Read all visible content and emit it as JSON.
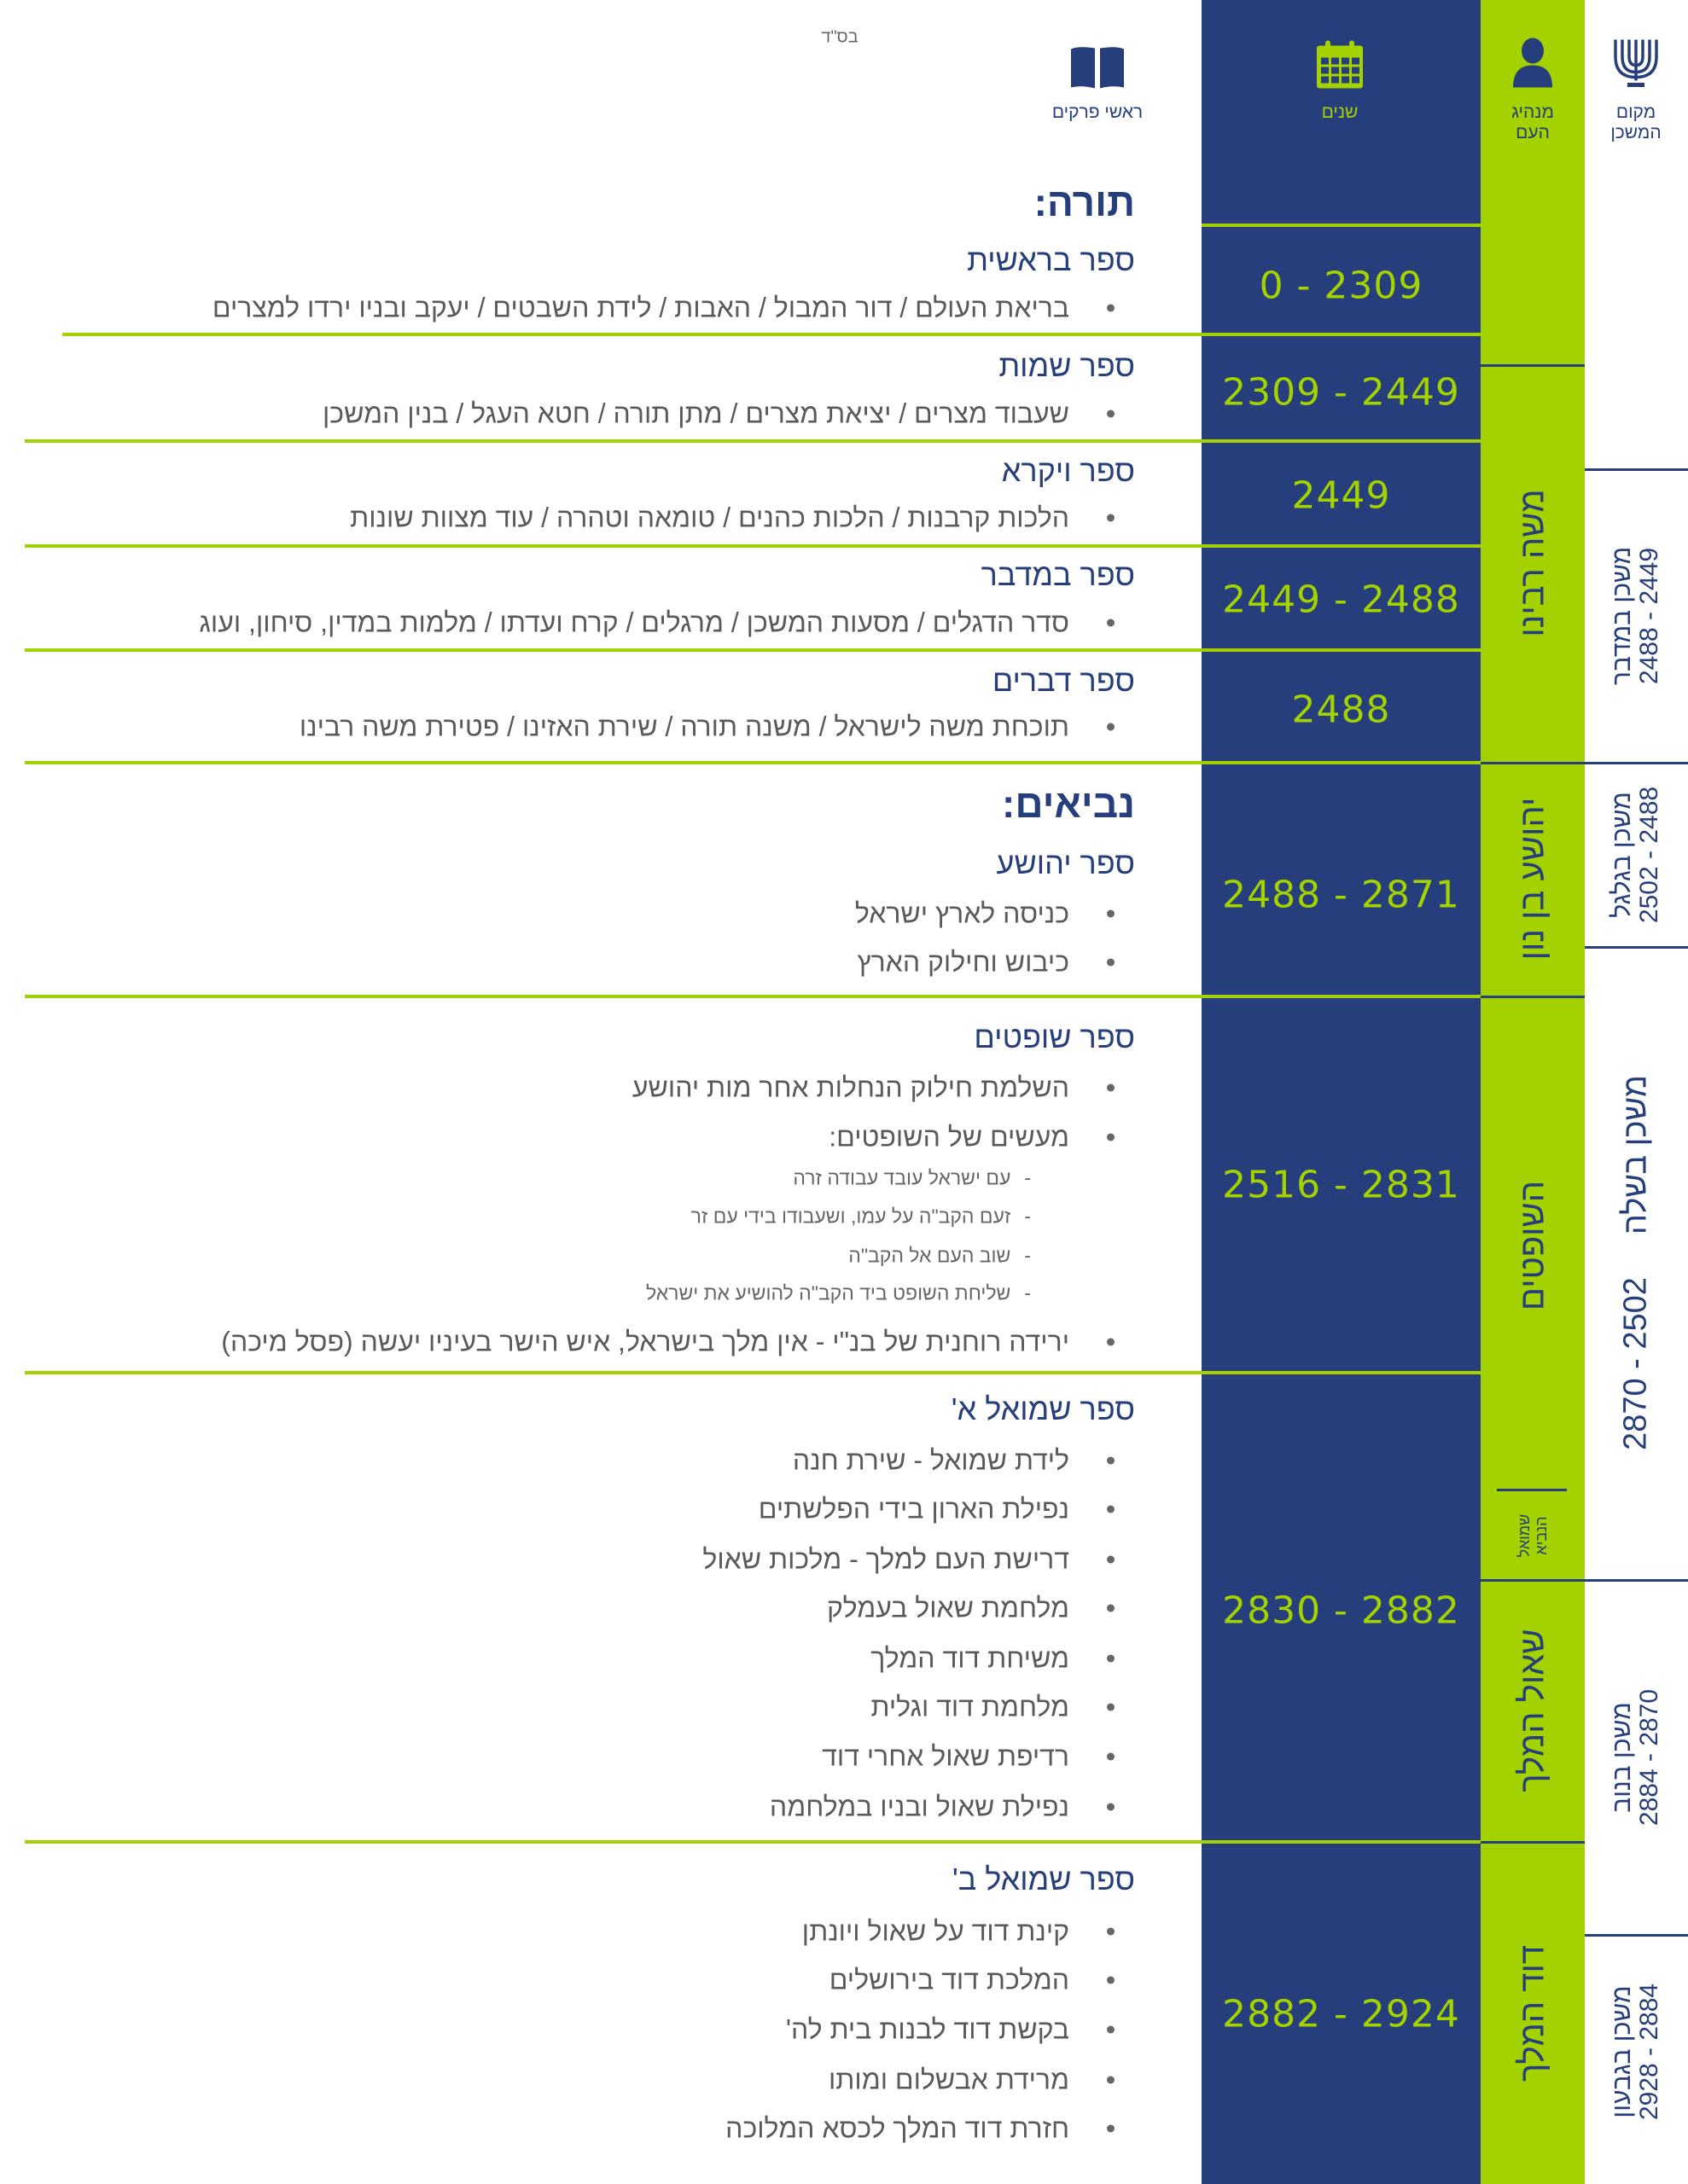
{
  "header": {
    "bsd": "בס\"ד",
    "col_chapters": "ראשי פרקים",
    "col_years": "שנים",
    "col_leader_1": "מנהיג",
    "col_leader_2": "העם",
    "col_place_1": "מקום",
    "col_place_2": "המשכן",
    "icons": [
      "open-book-icon",
      "calendar-icon",
      "person-icon",
      "menorah-icon"
    ]
  },
  "colors": {
    "blue": "#263f7c",
    "green": "#a3d200",
    "text": "#5a5a5a"
  },
  "torah": {
    "title": "תורה:",
    "books": [
      {
        "name": "ספר בראשית",
        "years": "0 - 2309",
        "bullets": [
          "בריאת העולם / דור המבול / האבות / לידת השבטים / יעקב ובניו ירדו למצרים"
        ]
      },
      {
        "name": "ספר שמות",
        "years": "2309 - 2449",
        "bullets": [
          "שעבוד מצרים / יציאת מצרים / מתן תורה / חטא העגל / בנין המשכן"
        ]
      },
      {
        "name": "ספר ויקרא",
        "years": "2449",
        "bullets": [
          "הלכות קרבנות / הלכות כהנים / טומאה וטהרה / עוד מצוות שונות"
        ]
      },
      {
        "name": "ספר במדבר",
        "years": "2449 - 2488",
        "bullets": [
          "סדר הדגלים / מסעות המשכן / מרגלים / קרח ועדתו / מלמות במדין, סיחון, ועוג"
        ]
      },
      {
        "name": "ספר דברים",
        "years": "2488",
        "bullets": [
          "תוכחת משה לישראל / משנה תורה / שירת האזינו / פטירת משה רבינו"
        ]
      }
    ]
  },
  "neviim": {
    "title": "נביאים:",
    "books": [
      {
        "name": "ספר יהושע",
        "years": "2488 - 2871",
        "bullets": [
          "כניסה לארץ ישראל",
          "כיבוש וחילוק הארץ"
        ]
      },
      {
        "name": "ספר שופטים",
        "years": "2516 - 2831",
        "bullets": [
          "השלמת חילוק הנחלות אחר מות יהושע",
          "מעשים של השופטים:",
          "ירידה רוחנית של בנ\"י - אין מלך בישראל, איש הישר בעיניו יעשה (פסל מיכה)"
        ],
        "sub_bullets": [
          "עם ישראל עובד עבודה זרה",
          "זעם הקב\"ה על עמו, ושעבודו בידי עם זר",
          "שוב העם אל הקב\"ה",
          "שליחת השופט ביד הקב\"ה להושיע את ישראל"
        ]
      },
      {
        "name": "ספר שמואל א'",
        "years": "2830 - 2882",
        "bullets": [
          "לידת שמואל - שירת חנה",
          "נפילת הארון בידי הפלשתים",
          "דרישת העם למלך - מלכות שאול",
          "מלחמת שאול בעמלק",
          "משיחת דוד המלך",
          "מלחמת דוד וגלית",
          "רדיפת שאול אחרי דוד",
          "נפילת שאול ובניו במלחמה"
        ]
      },
      {
        "name": "ספר שמואל ב'",
        "years": "2882 - 2924",
        "bullets": [
          "קינת דוד על שאול ויונתן",
          "המלכת דוד בירושלים",
          "בקשת דוד לבנות בית לה'",
          "מרידת אבשלום ומותו",
          "חזרת דוד המלך לכסא המלוכה"
        ]
      }
    ]
  },
  "leaders": [
    "משה רבינו",
    "יהושע בן נון",
    "השופטים",
    "שמואל",
    "הנביא",
    "שאול המלך",
    "דוד המלך"
  ],
  "places": [
    {
      "name": "משכן במדבר",
      "years": "2449 - 2488"
    },
    {
      "name": "משכן בגלגל",
      "years": "2488 - 2502"
    },
    {
      "name": "משכן בשלה",
      "years": "2502 - 2870"
    },
    {
      "name": "משכן בנוב",
      "years": "2870 - 2884"
    },
    {
      "name": "משכן בגבעון",
      "years": "2884 - 2928"
    }
  ]
}
